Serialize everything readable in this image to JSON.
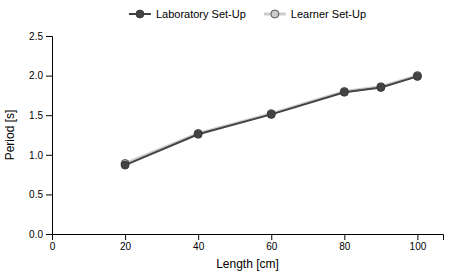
{
  "chart_data": {
    "type": "line",
    "xlabel": "Length [cm]",
    "ylabel": "Period [s]",
    "x": [
      20,
      40,
      60,
      80,
      90,
      100
    ],
    "series": [
      {
        "name": "Laboratory Set-Up",
        "color": "#444444",
        "marker": "circle",
        "values": [
          0.87,
          1.26,
          1.51,
          1.79,
          1.85,
          1.99
        ]
      },
      {
        "name": "Learner Set-Up",
        "color": "#cccccc",
        "marker": "circle",
        "values": [
          0.89,
          1.27,
          1.52,
          1.8,
          1.86,
          2.0
        ]
      }
    ],
    "xlim": [
      0,
      107
    ],
    "ylim": [
      0,
      2.5
    ],
    "xticks": [
      0,
      20,
      40,
      60,
      80,
      100
    ],
    "yticks": [
      {
        "value": 0,
        "label": "0.0"
      },
      0.5,
      {
        "value": 1.0,
        "label": "1.0"
      },
      1.5,
      {
        "value": 2.0,
        "label": "2.0"
      },
      2.5
    ],
    "legend": "top"
  }
}
